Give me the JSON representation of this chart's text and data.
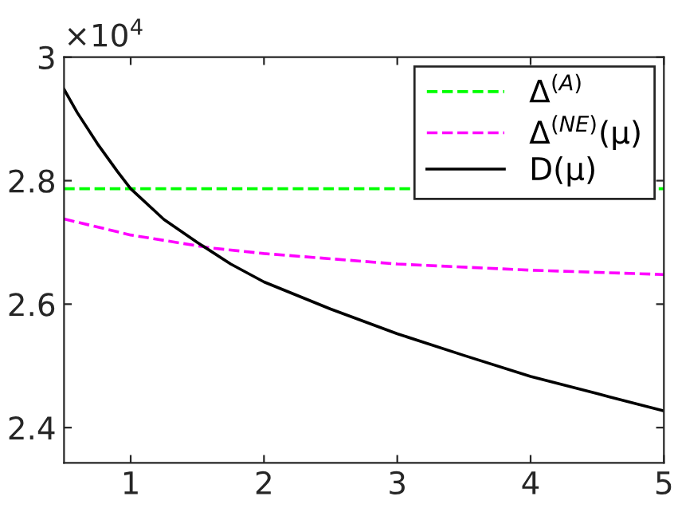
{
  "chart_data": {
    "type": "line",
    "xlim": [
      0.5,
      5
    ],
    "ylim": [
      2.343,
      3
    ],
    "xticks": [
      1,
      2,
      3,
      4,
      5
    ],
    "yticks": [
      2.4,
      2.6,
      2.8,
      3
    ],
    "annotations": [
      "×10$^{4}$"
    ],
    "legend": "top right",
    "grid": false,
    "series": [
      {
        "name": "Δ$^{(A)}$",
        "color": "#00ff00",
        "line_style": "dashed",
        "x": [
          0.5,
          5
        ],
        "values": [
          2.787,
          2.787
        ]
      },
      {
        "name": "Δ$^{(NE)}$(μ)",
        "color": "#ff00ff",
        "line_style": "dashed",
        "x": [
          0.5,
          1,
          1.6,
          2,
          3,
          4,
          5
        ],
        "values": [
          2.738,
          2.712,
          2.691,
          2.682,
          2.665,
          2.655,
          2.648
        ]
      },
      {
        "name": "D(μ)",
        "color": "#000000",
        "line_style": "solid",
        "x": [
          0.5,
          0.6,
          0.75,
          0.9,
          1,
          1.25,
          1.5,
          1.75,
          2,
          2.5,
          3,
          3.5,
          4,
          4.5,
          5
        ],
        "values": [
          2.948,
          2.91,
          2.86,
          2.815,
          2.787,
          2.737,
          2.7,
          2.665,
          2.636,
          2.592,
          2.552,
          2.517,
          2.483,
          2.455,
          2.427
        ]
      }
    ]
  }
}
